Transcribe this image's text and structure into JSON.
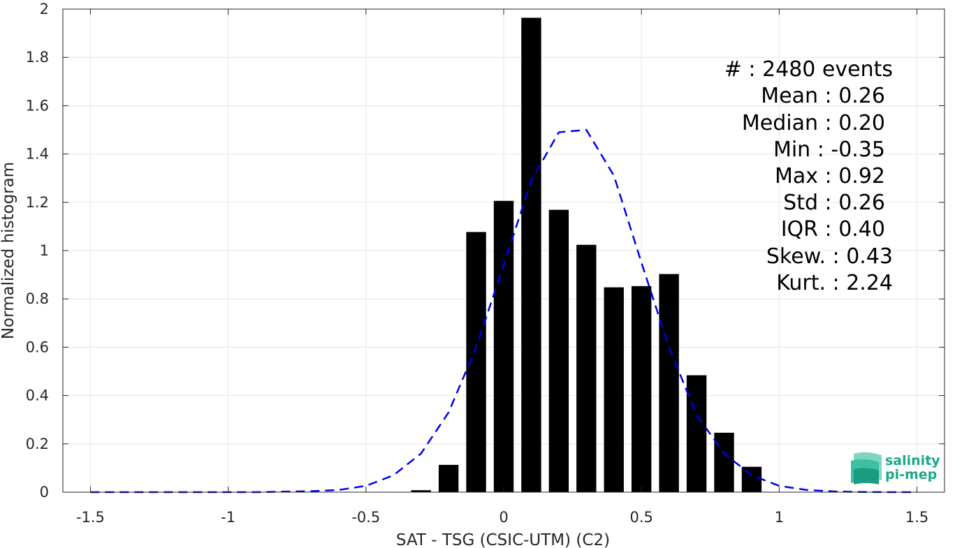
{
  "chart_data": {
    "type": "bar",
    "xlabel": "SAT - TSG (CSIC-UTM) (C2)",
    "ylabel": "Normalized histogram",
    "xlim": [
      -1.6,
      1.6
    ],
    "ylim": [
      0,
      2
    ],
    "grid": true,
    "x_ticks": [
      -1.5,
      -1,
      -0.5,
      0,
      0.5,
      1,
      1.5
    ],
    "x_tick_labels": [
      "-1.5",
      "-1",
      "-0.5",
      "0",
      "0.5",
      "1",
      "1.5"
    ],
    "y_ticks": [
      0,
      0.2,
      0.4,
      0.6,
      0.8,
      1,
      1.2,
      1.4,
      1.6,
      1.8,
      2
    ],
    "y_tick_labels": [
      "0",
      "0.2",
      "0.4",
      "0.6",
      "0.8",
      "1",
      "1.2",
      "1.4",
      "1.6",
      "1.8",
      "2"
    ],
    "bar_width": 0.072,
    "bars": {
      "x": [
        -0.3,
        -0.2,
        -0.1,
        0.0,
        0.1,
        0.2,
        0.3,
        0.4,
        0.5,
        0.6,
        0.7,
        0.8,
        0.9
      ],
      "values": [
        0.008,
        0.113,
        1.077,
        1.206,
        1.964,
        1.169,
        1.024,
        0.848,
        0.853,
        0.903,
        0.484,
        0.246,
        0.105
      ],
      "color": "#000000"
    },
    "fit_curve": {
      "style": "dashed",
      "color": "#0000ee",
      "x": [
        -1.5,
        -1.4,
        -1.3,
        -1.2,
        -1.1,
        -1.0,
        -0.9,
        -0.8,
        -0.7,
        -0.6,
        -0.5,
        -0.4,
        -0.3,
        -0.2,
        -0.1,
        0.0,
        0.1,
        0.2,
        0.3,
        0.4,
        0.5,
        0.6,
        0.7,
        0.8,
        0.9,
        1.0,
        1.1,
        1.2,
        1.3,
        1.4,
        1.5
      ],
      "y": [
        0,
        0,
        0,
        0,
        0,
        0,
        0,
        0.002,
        0.004,
        0.009,
        0.026,
        0.07,
        0.16,
        0.33,
        0.6,
        0.94,
        1.29,
        1.49,
        1.5,
        1.31,
        0.95,
        0.6,
        0.32,
        0.16,
        0.07,
        0.026,
        0.009,
        0.003,
        0.001,
        0,
        0
      ]
    },
    "annotations": [
      "#  : 2480 events",
      "Mean : 0.26",
      "Median : 0.20",
      "Min : -0.35",
      "Max : 0.92",
      "Std : 0.26",
      "IQR : 0.40",
      "Skew. : 0.43",
      "Kurt. : 2.24"
    ]
  },
  "logo": {
    "line1": "salinity",
    "line2": "pi-mep",
    "color": "#1aa889"
  }
}
